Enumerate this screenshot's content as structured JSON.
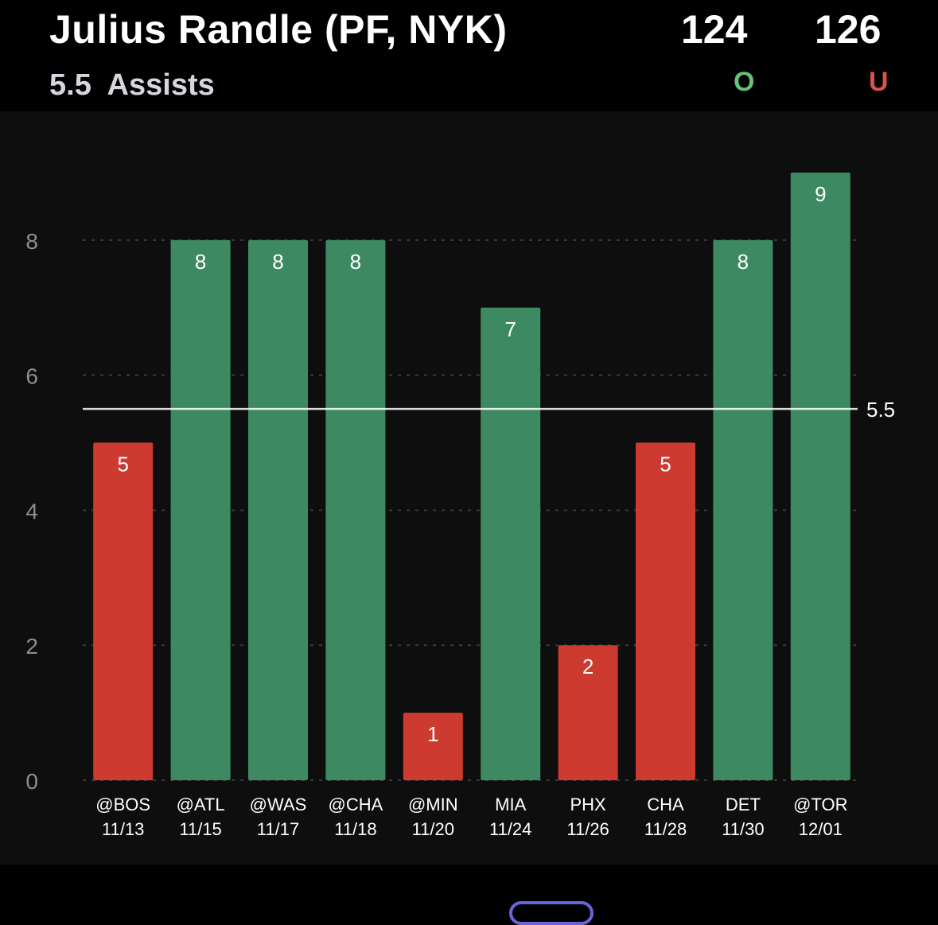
{
  "header": {
    "player": "Julius Randle (PF, NYK)",
    "line": "5.5",
    "stat": "Assists",
    "over_odds": "124",
    "under_odds": "126",
    "over_label": "O",
    "under_label": "U"
  },
  "colors": {
    "over": "#3d8a62",
    "under": "#cc3a30",
    "over_text": "#66c27a",
    "under_text": "#d9544a",
    "background": "#0e0e0e"
  },
  "chart_data": {
    "type": "bar",
    "categories": [
      "@BOS 11/13",
      "@ATL 11/15",
      "@WAS 11/17",
      "@CHA 11/18",
      "@MIN 11/20",
      "MIA 11/24",
      "PHX 11/26",
      "CHA 11/28",
      "DET 11/30",
      "@TOR 12/01"
    ],
    "opponents": [
      "@BOS",
      "@ATL",
      "@WAS",
      "@CHA",
      "@MIN",
      "MIA",
      "PHX",
      "CHA",
      "DET",
      "@TOR"
    ],
    "dates": [
      "11/13",
      "11/15",
      "11/17",
      "11/18",
      "11/20",
      "11/24",
      "11/26",
      "11/28",
      "11/30",
      "12/01"
    ],
    "values": [
      5,
      8,
      8,
      8,
      1,
      7,
      2,
      5,
      8,
      9
    ],
    "threshold": 5.5,
    "threshold_label": "5.5",
    "yticks": [
      0,
      2,
      4,
      6,
      8
    ],
    "ylim": [
      0,
      9
    ],
    "grid": true,
    "title": "",
    "xlabel": "",
    "ylabel": ""
  }
}
